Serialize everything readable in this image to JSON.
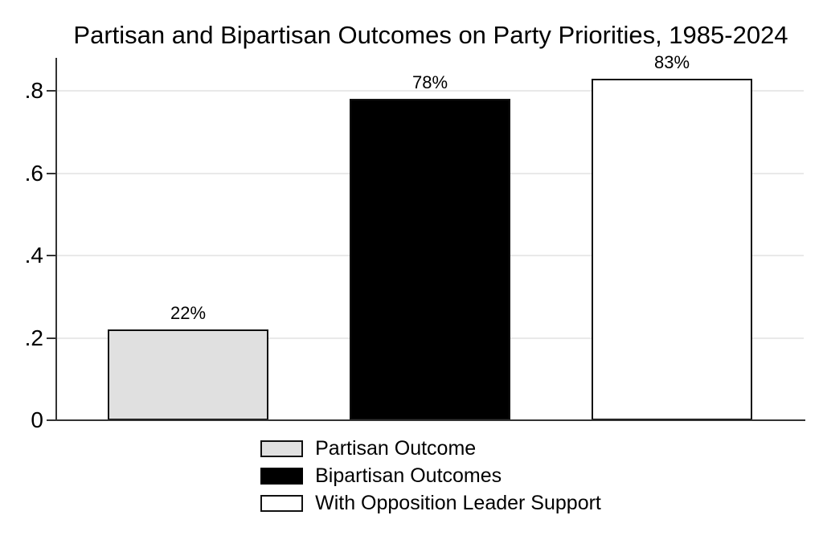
{
  "chart_data": {
    "type": "bar",
    "title": "Partisan and Bipartisan Outcomes on Party Priorities, 1985-2024",
    "categories": [
      "Partisan Outcome",
      "Bipartisan Outcomes",
      "With Opposition Leader Support"
    ],
    "values": [
      0.22,
      0.78,
      0.83
    ],
    "bar_labels": [
      "22%",
      "78%",
      "83%"
    ],
    "bar_colors": [
      "#e0e0e0",
      "#000000",
      "#ffffff"
    ],
    "bar_border_color": "#111111",
    "xlabel": "",
    "ylabel": "",
    "y_ticks": [
      "0",
      ".2",
      ".4",
      ".6",
      ".8"
    ],
    "y_tick_values": [
      0,
      0.2,
      0.4,
      0.6,
      0.8
    ],
    "ylim": [
      0,
      0.88
    ],
    "grid": true,
    "gridline_color": "#e9e9e9",
    "axis_color": "#333333",
    "background_color": "#ffffff",
    "legend_position": "bottom",
    "legend": [
      {
        "label": "Partisan Outcome",
        "fill": "#e0e0e0",
        "border": "#111111"
      },
      {
        "label": "Bipartisan Outcomes",
        "fill": "#000000",
        "border": "#000000"
      },
      {
        "label": "With Opposition Leader Support",
        "fill": "#ffffff",
        "border": "#111111"
      }
    ]
  }
}
